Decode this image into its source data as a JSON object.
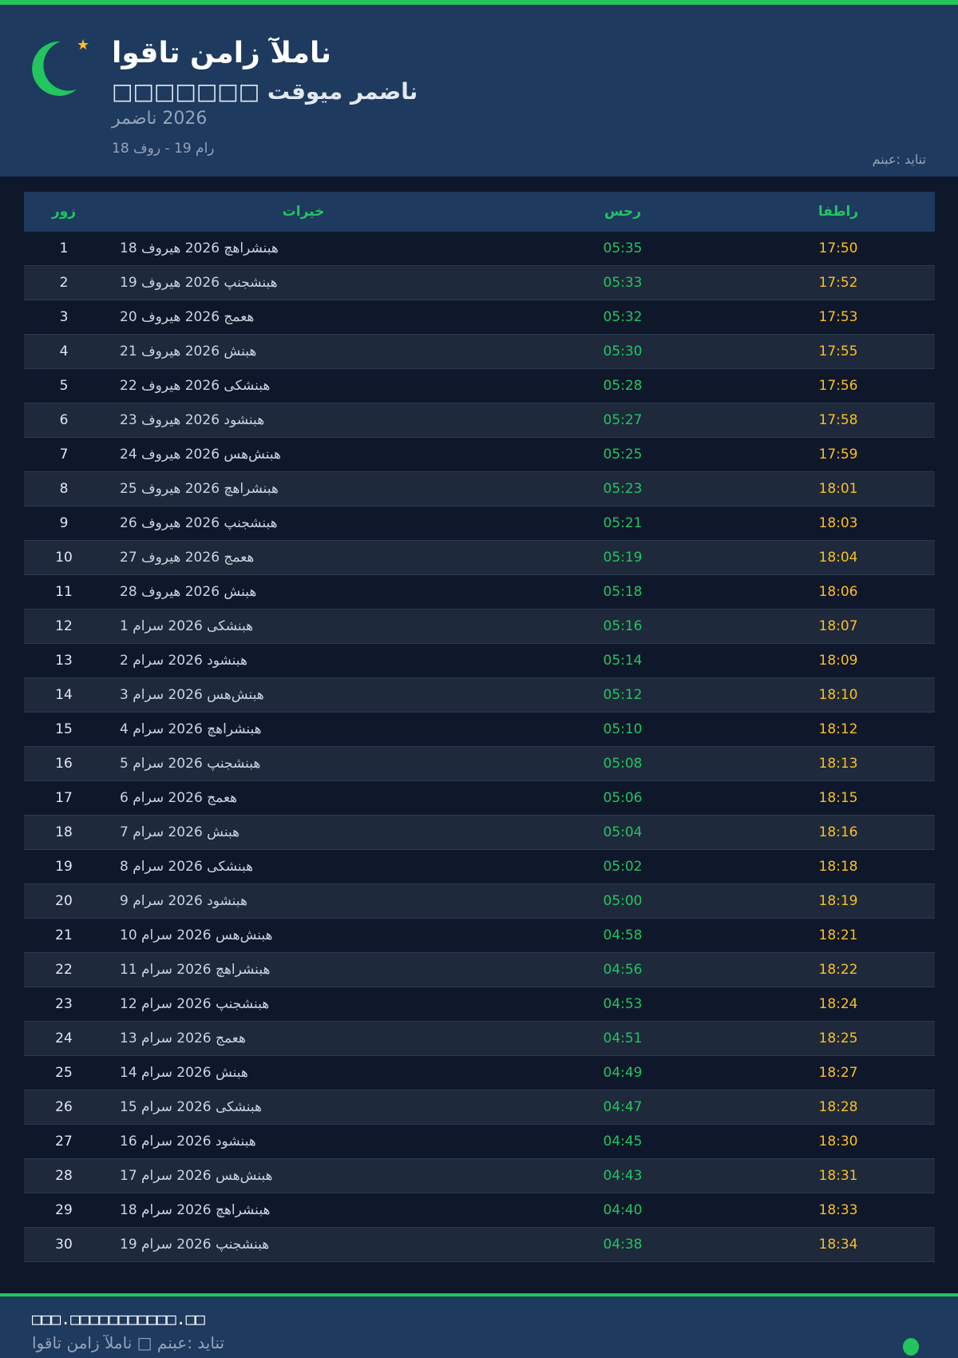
{
  "header": {
    "title": "اوقات نماز آلمان",
    "subtitle": "□□□□□□□ تقویم رمضان",
    "year": "رمضان 2026",
    "range": "18 فور - 19 مار",
    "source": "منبع: دیانت",
    "icons": [
      "crescent-moon-icon",
      "star-icon"
    ]
  },
  "table": {
    "headers": {
      "day": "روز",
      "date": "تاریخ",
      "sahar": "سحر",
      "iftar": "افطار"
    },
    "rows": [
      {
        "day": "1",
        "date": "18 فوریه 2026 چهارشنبه",
        "sahar": "05:35",
        "iftar": "17:50"
      },
      {
        "day": "2",
        "date": "19 فوریه 2026 پنجشنبه",
        "sahar": "05:33",
        "iftar": "17:52"
      },
      {
        "day": "3",
        "date": "20 فوریه 2026 جمعه",
        "sahar": "05:32",
        "iftar": "17:53"
      },
      {
        "day": "4",
        "date": "21 فوریه 2026 شنبه",
        "sahar": "05:30",
        "iftar": "17:55"
      },
      {
        "day": "5",
        "date": "22 فوریه 2026 یکشنبه",
        "sahar": "05:28",
        "iftar": "17:56"
      },
      {
        "day": "6",
        "date": "23 فوریه 2026 دوشنبه",
        "sahar": "05:27",
        "iftar": "17:58"
      },
      {
        "day": "7",
        "date": "24 فوریه 2026 سه‌شنبه",
        "sahar": "05:25",
        "iftar": "17:59"
      },
      {
        "day": "8",
        "date": "25 فوریه 2026 چهارشنبه",
        "sahar": "05:23",
        "iftar": "18:01"
      },
      {
        "day": "9",
        "date": "26 فوریه 2026 پنجشنبه",
        "sahar": "05:21",
        "iftar": "18:03"
      },
      {
        "day": "10",
        "date": "27 فوریه 2026 جمعه",
        "sahar": "05:19",
        "iftar": "18:04"
      },
      {
        "day": "11",
        "date": "28 فوریه 2026 شنبه",
        "sahar": "05:18",
        "iftar": "18:06"
      },
      {
        "day": "12",
        "date": "1 مارس 2026 یکشنبه",
        "sahar": "05:16",
        "iftar": "18:07"
      },
      {
        "day": "13",
        "date": "2 مارس 2026 دوشنبه",
        "sahar": "05:14",
        "iftar": "18:09"
      },
      {
        "day": "14",
        "date": "3 مارس 2026 سه‌شنبه",
        "sahar": "05:12",
        "iftar": "18:10"
      },
      {
        "day": "15",
        "date": "4 مارس 2026 چهارشنبه",
        "sahar": "05:10",
        "iftar": "18:12"
      },
      {
        "day": "16",
        "date": "5 مارس 2026 پنجشنبه",
        "sahar": "05:08",
        "iftar": "18:13"
      },
      {
        "day": "17",
        "date": "6 مارس 2026 جمعه",
        "sahar": "05:06",
        "iftar": "18:15"
      },
      {
        "day": "18",
        "date": "7 مارس 2026 شنبه",
        "sahar": "05:04",
        "iftar": "18:16"
      },
      {
        "day": "19",
        "date": "8 مارس 2026 یکشنبه",
        "sahar": "05:02",
        "iftar": "18:18"
      },
      {
        "day": "20",
        "date": "9 مارس 2026 دوشنبه",
        "sahar": "05:00",
        "iftar": "18:19"
      },
      {
        "day": "21",
        "date": "10 مارس 2026 سه‌شنبه",
        "sahar": "04:58",
        "iftar": "18:21"
      },
      {
        "day": "22",
        "date": "11 مارس 2026 چهارشنبه",
        "sahar": "04:56",
        "iftar": "18:22"
      },
      {
        "day": "23",
        "date": "12 مارس 2026 پنجشنبه",
        "sahar": "04:53",
        "iftar": "18:24"
      },
      {
        "day": "24",
        "date": "13 مارس 2026 جمعه",
        "sahar": "04:51",
        "iftar": "18:25"
      },
      {
        "day": "25",
        "date": "14 مارس 2026 شنبه",
        "sahar": "04:49",
        "iftar": "18:27"
      },
      {
        "day": "26",
        "date": "15 مارس 2026 یکشنبه",
        "sahar": "04:47",
        "iftar": "18:28"
      },
      {
        "day": "27",
        "date": "16 مارس 2026 دوشنبه",
        "sahar": "04:45",
        "iftar": "18:30"
      },
      {
        "day": "28",
        "date": "17 مارس 2026 سه‌شنبه",
        "sahar": "04:43",
        "iftar": "18:31"
      },
      {
        "day": "29",
        "date": "18 مارس 2026 چهارشنبه",
        "sahar": "04:40",
        "iftar": "18:33"
      },
      {
        "day": "30",
        "date": "19 مارس 2026 پنجشنبه",
        "sahar": "04:38",
        "iftar": "18:34"
      }
    ]
  },
  "footer": {
    "website": "□□□.□□□□□□□□□□□.□□",
    "caption": "اوقات نماز آلمان □ منبع: دیانت"
  },
  "colors": {
    "accent": "#22c55e",
    "iftar": "#fbbf24",
    "header_bg": "#1e3a5f",
    "page_bg": "#0f172a"
  }
}
